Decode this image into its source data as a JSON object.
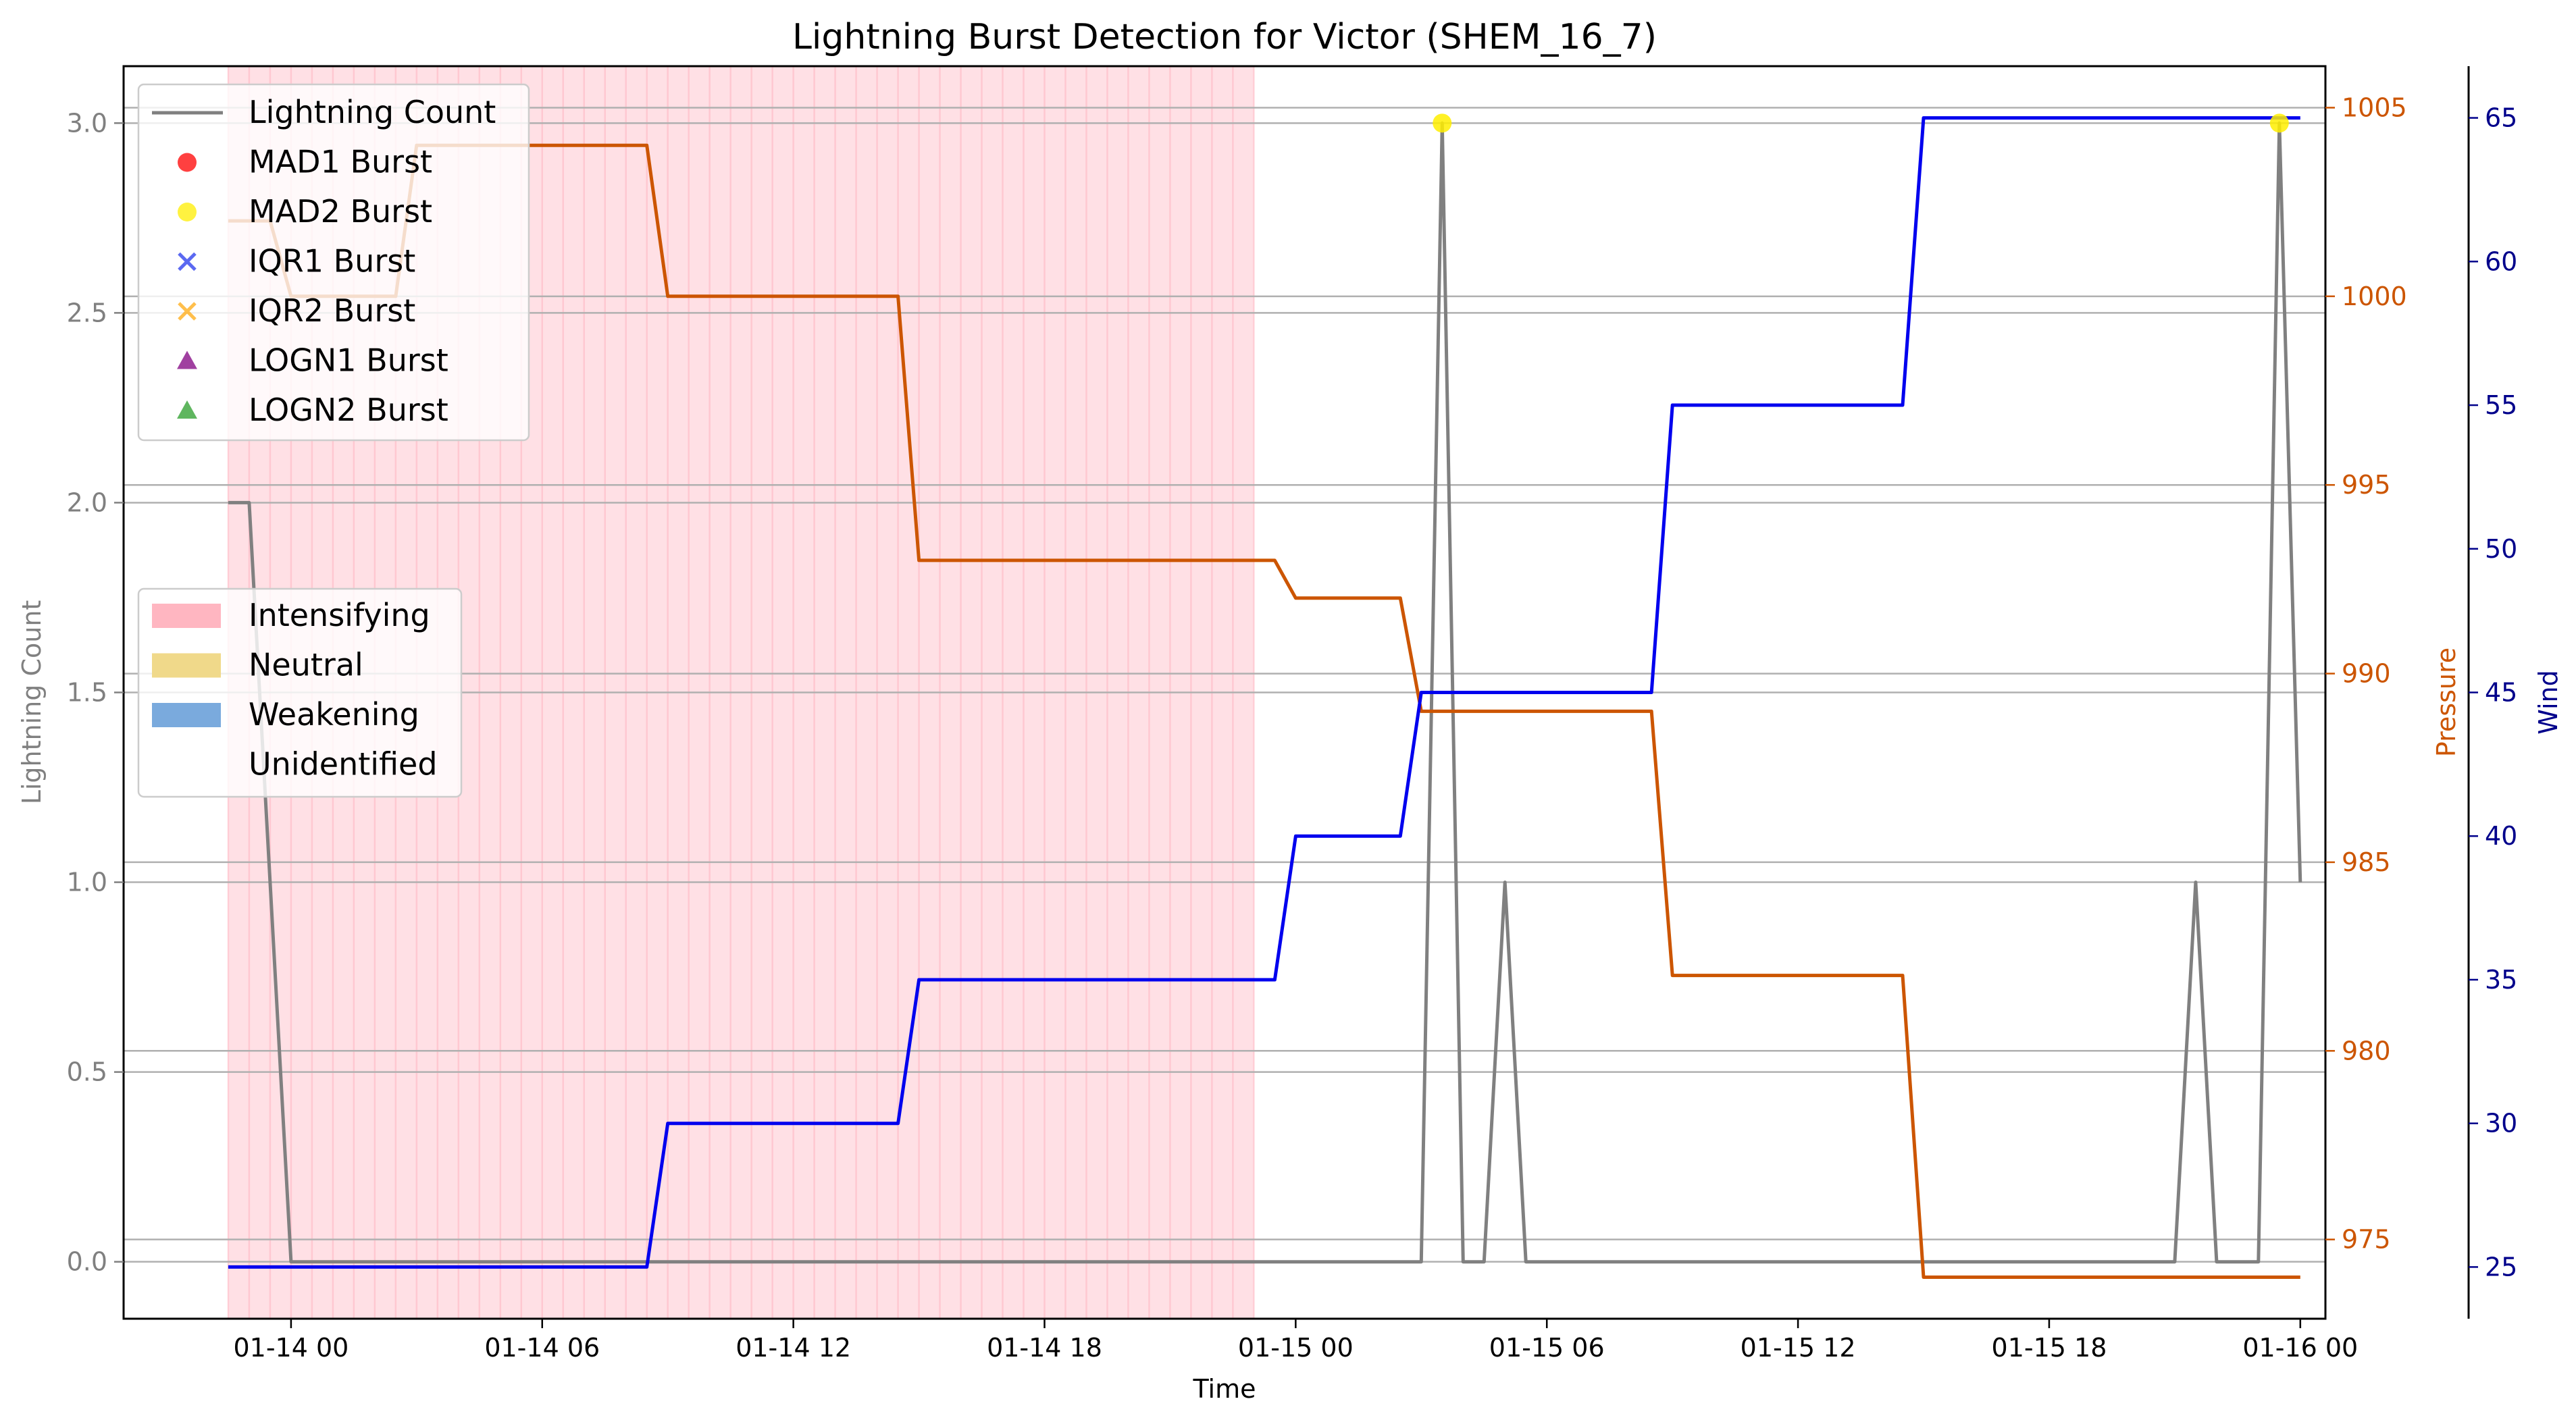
{
  "chart_data": {
    "type": "line",
    "title": "Lightning Burst Detection for Victor (SHEM_16_7)",
    "xlabel": "Time",
    "ylabel_left": "Lightning Count",
    "ylabel_pressure": "Pressure",
    "ylabel_wind": "Wind",
    "x_ticks": [
      "01-14 00",
      "01-14 06",
      "01-14 12",
      "01-14 18",
      "01-15 00",
      "01-15 06",
      "01-15 12",
      "01-15 18",
      "01-16 00"
    ],
    "y_left_ticks": [
      "0.0",
      "0.5",
      "1.0",
      "1.5",
      "2.0",
      "2.5",
      "3.0"
    ],
    "y_left_lim": [
      -0.15,
      3.15
    ],
    "y_pressure_ticks": [
      "975",
      "980",
      "985",
      "990",
      "995",
      "1000",
      "1005"
    ],
    "y_pressure_lim": [
      972.9,
      1006.1
    ],
    "y_wind_ticks": [
      "25",
      "30",
      "35",
      "40",
      "45",
      "50",
      "55",
      "60",
      "65"
    ],
    "y_wind_lim": [
      23.2,
      66.8
    ],
    "x_lim_hours_from_0114_00": [
      -4,
      48.6
    ],
    "grid": "horizontal",
    "colors": {
      "lightning": "#808080",
      "pressure": "#cc5500",
      "wind": "#0000ee",
      "intensifying": "#ffb6c1",
      "neutral": "#f0d98a",
      "weakening": "#7aaadd",
      "mad1": "#ff0000",
      "mad2": "#ffee00",
      "iqr1": "#3344ee",
      "iqr2": "#ffb020",
      "logn1": "#800080",
      "logn2": "#2a9d2a",
      "pressure_axis": "#cc5500",
      "wind_axis": "#00008b"
    },
    "lightning_series": {
      "name": "Lightning Count",
      "x_hours": [
        -1.5,
        -1,
        0,
        27,
        27.5,
        28,
        28.5,
        29,
        29.5,
        45,
        45.5,
        46,
        47,
        47.5,
        48
      ],
      "values": [
        2,
        2,
        0,
        0,
        3,
        0,
        0,
        1,
        0,
        0,
        1,
        0,
        0,
        3,
        1
      ]
    },
    "pressure_series": {
      "name": "Pressure",
      "x_hours": [
        -1.5,
        -0.5,
        0,
        2.5,
        3,
        8.5,
        9,
        14.5,
        15,
        23.5,
        24,
        26.5,
        27,
        32.5,
        33,
        38.5,
        39,
        48
      ],
      "values": [
        1002,
        1002,
        1000,
        1000,
        1004,
        1004,
        1000,
        1000,
        993,
        993,
        992,
        992,
        989,
        989,
        982,
        982,
        974,
        974
      ]
    },
    "wind_series": {
      "name": "Wind",
      "x_hours": [
        -1.5,
        8.5,
        9,
        14.5,
        15,
        23.5,
        24,
        26.5,
        27,
        32.5,
        33,
        38.5,
        39,
        48
      ],
      "values": [
        25,
        25,
        30,
        30,
        35,
        35,
        40,
        40,
        45,
        45,
        55,
        55,
        65,
        65
      ]
    },
    "intensifying_region_hours": [
      -1.5,
      23
    ],
    "bursts": [
      {
        "type": "MAD2 Burst",
        "x_hours": 27.5,
        "value": 3
      },
      {
        "type": "MAD2 Burst",
        "x_hours": 47.5,
        "value": 3
      }
    ],
    "legend_markers": [
      {
        "label": "Lightning Count",
        "marker": "line",
        "color": "#808080"
      },
      {
        "label": "MAD1 Burst",
        "marker": "circle",
        "color": "#ff0000"
      },
      {
        "label": "MAD2 Burst",
        "marker": "circle",
        "color": "#ffee00"
      },
      {
        "label": "IQR1 Burst",
        "marker": "x",
        "color": "#3344ee"
      },
      {
        "label": "IQR2 Burst",
        "marker": "x",
        "color": "#ffb020"
      },
      {
        "label": "LOGN1 Burst",
        "marker": "triangle",
        "color": "#800080"
      },
      {
        "label": "LOGN2 Burst",
        "marker": "triangle",
        "color": "#2a9d2a"
      }
    ],
    "legend_phases": [
      {
        "label": "Intensifying",
        "color": "#ffb6c1"
      },
      {
        "label": "Neutral",
        "color": "#f0d98a"
      },
      {
        "label": "Weakening",
        "color": "#7aaadd"
      },
      {
        "label": "Unidentified",
        "color": "#ffffff"
      }
    ]
  }
}
